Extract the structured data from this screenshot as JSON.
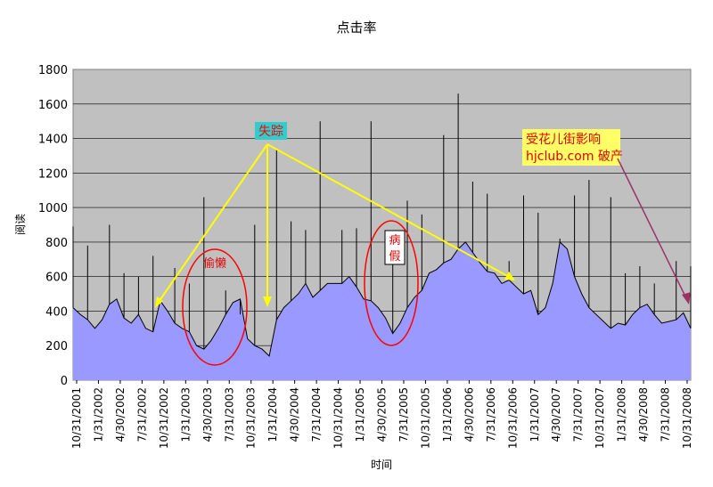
{
  "chart_data": {
    "type": "area",
    "title": "点击率",
    "xlabel": "时间",
    "ylabel": "阅读",
    "ylim": [
      0,
      1800
    ],
    "yticks": [
      0,
      200,
      400,
      600,
      800,
      1000,
      1200,
      1400,
      1600,
      1800
    ],
    "xticks": [
      "10/31/2001",
      "1/31/2002",
      "4/30/2002",
      "7/31/2002",
      "10/31/2002",
      "1/31/2003",
      "4/30/2003",
      "7/31/2003",
      "10/31/2003",
      "1/31/2004",
      "4/30/2004",
      "7/31/2004",
      "10/31/2004",
      "1/31/2005",
      "4/30/2005",
      "7/31/2005",
      "10/31/2005",
      "1/31/2006",
      "4/30/2006",
      "7/31/2006",
      "10/31/2006",
      "1/31/2007",
      "4/30/2007",
      "7/31/2007",
      "10/31/2007",
      "1/31/2008",
      "4/30/2008",
      "7/31/2008",
      "10/31/2008"
    ],
    "grid": "horizontal",
    "plot_background": "#c0c0c0",
    "fill_color": "#9999ff",
    "line_color": "#000000",
    "series": [
      {
        "x": [
          "10/31/2001",
          "11/30/2001",
          "12/31/2001",
          "1/31/2002",
          "2/28/2002",
          "3/31/2002",
          "4/30/2002",
          "5/31/2002",
          "6/30/2002",
          "7/31/2002",
          "8/31/2002",
          "9/30/2002",
          "10/31/2002",
          "11/30/2002",
          "12/31/2002",
          "1/31/2003",
          "2/28/2003",
          "3/31/2003",
          "4/30/2003",
          "5/31/2003",
          "6/30/2003",
          "7/31/2003",
          "8/31/2003",
          "9/30/2003",
          "10/31/2003",
          "11/30/2003",
          "12/31/2003",
          "1/31/2004",
          "2/29/2004",
          "3/31/2004",
          "4/30/2004",
          "5/31/2004",
          "6/30/2004",
          "7/31/2004",
          "8/31/2004",
          "9/30/2004",
          "10/31/2004",
          "11/30/2004",
          "12/31/2004",
          "1/31/2005",
          "2/28/2005",
          "3/31/2005",
          "4/30/2005",
          "5/31/2005",
          "6/30/2005",
          "7/31/2005",
          "8/31/2005",
          "9/30/2005",
          "10/31/2005",
          "11/30/2005",
          "12/31/2005",
          "1/31/2006",
          "2/28/2006",
          "3/31/2006",
          "4/30/2006",
          "5/31/2006",
          "6/30/2006",
          "7/31/2006",
          "8/31/2006",
          "9/30/2006",
          "10/31/2006",
          "11/30/2006",
          "12/31/2006",
          "1/31/2007",
          "2/28/2007",
          "3/31/2007",
          "4/30/2007",
          "5/31/2007",
          "6/30/2007",
          "7/31/2007",
          "8/31/2007",
          "9/30/2007",
          "10/31/2007",
          "11/30/2007",
          "12/31/2007",
          "1/31/2008",
          "2/29/2008",
          "3/31/2008",
          "4/30/2008",
          "5/31/2008",
          "6/30/2008",
          "7/31/2008",
          "8/31/2008",
          "9/30/2008",
          "10/31/2008",
          "11/30/2008"
        ],
        "values": [
          420,
          380,
          350,
          300,
          350,
          440,
          470,
          360,
          330,
          380,
          300,
          280,
          460,
          400,
          330,
          300,
          280,
          200,
          180,
          230,
          300,
          380,
          450,
          470,
          240,
          200,
          180,
          140,
          350,
          420,
          460,
          500,
          560,
          480,
          520,
          560,
          560,
          560,
          600,
          540,
          470,
          460,
          420,
          360,
          270,
          330,
          420,
          480,
          520,
          620,
          640,
          680,
          700,
          760,
          800,
          740,
          680,
          630,
          620,
          560,
          580,
          540,
          500,
          520,
          380,
          420,
          560,
          800,
          760,
          600,
          500,
          420,
          380,
          340,
          300,
          330,
          320,
          380,
          420,
          440,
          380,
          330,
          340,
          350,
          390,
          300
        ],
        "peaks": [
          890,
          780,
          900,
          620,
          600,
          720,
          650,
          560,
          1060,
          520,
          380,
          900,
          1340,
          920,
          870,
          1500,
          870,
          880,
          1500,
          830,
          1040,
          960,
          1420,
          1660,
          1150,
          1080,
          690,
          1070,
          970,
          820,
          1070,
          1160,
          1060,
          620,
          660,
          560,
          690,
          660
        ]
      }
    ],
    "annotations": {
      "missing_label": "失踪",
      "lazy_label": "偷懒",
      "sick_label_1": "病",
      "sick_label_2": "假",
      "bankrupt_line1": "受花儿街影响",
      "bankrupt_line2": "hjclub.com 破产"
    }
  }
}
